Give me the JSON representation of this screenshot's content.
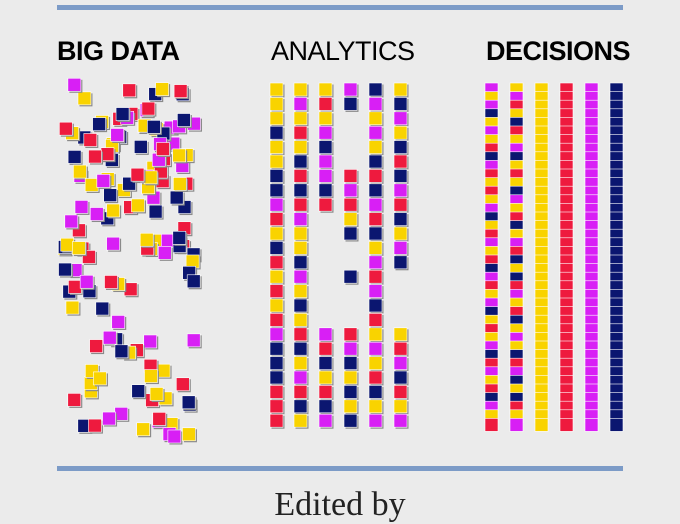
{
  "headings": {
    "big_data": "BIG DATA",
    "analytics": "ANALYTICS",
    "decisions": "DECISIONS"
  },
  "footer_text": "Edited by",
  "colors": {
    "background": "#ebebeb",
    "rule": "#7c9bc7",
    "yellow": "#f9d300",
    "magenta": "#d81ff5",
    "red": "#ee1a3e",
    "navy": "#0b1670",
    "shadow": "#8a8a8a"
  },
  "analytics_columns": [
    "YYYNYYNNMRYNRYRYRMNNNRRRYRYYRRMNYRYNRRYM",
    "YMYRYNRNRMYYNMYNYRNYMRNYYMNYYMYNRYM",
    "YRYMNMMNRMRNYRNMNYNMNYRNYMNMRNYMNMYNYRNMY",
    "MNRMRYNNRMNYNYNRYNMYNNMYRYNM",
    "NMYMYNRNMRNYMRMNRYMYRNYMRRNRMNRNYRN",
    "YNMYNRNMRNYMNYRMNRYMYMNYRNMYRNYM"
  ],
  "decisions_columns": [
    "MYMNYMYRNMRYRYMNYRMYRNMRYMNYRYMNRMYRNMYRY",
    "YMRYNRYMNYRYNMYRNYMRNYNRMYRNYMYNRMNYNRYMN",
    "YYYYYYYYYYYYYYYYYYYYYYYYYYYYYYYYYYYYYYYYY",
    "RRRRRRRRRRRRRRRRRRRRRRRRRRRRRRRRRRRRRRRRR",
    "MMMMMMMMMMMMMMMMMMMMMMMMMMMMMMMMMMMMMMMMM",
    "NNNNNNNNNNNNNNNNNNNNNNNNNNNNNNNNNNNNNNNNN"
  ],
  "big_data_squares": "YYMNRMMYNYRMNYRYMNNRYYMRNYYRMNYRMNMRYYNRMRNYMMYRYNNRMYRNMMYNRYRYNYMNRYMRNNRMYRYNMMRYYNRNMMNYRRYMYNMRYRNYMNRMYNYRMRNYMNRYMYRNMNYRYMNRMYNYRMNYRMYN"
}
